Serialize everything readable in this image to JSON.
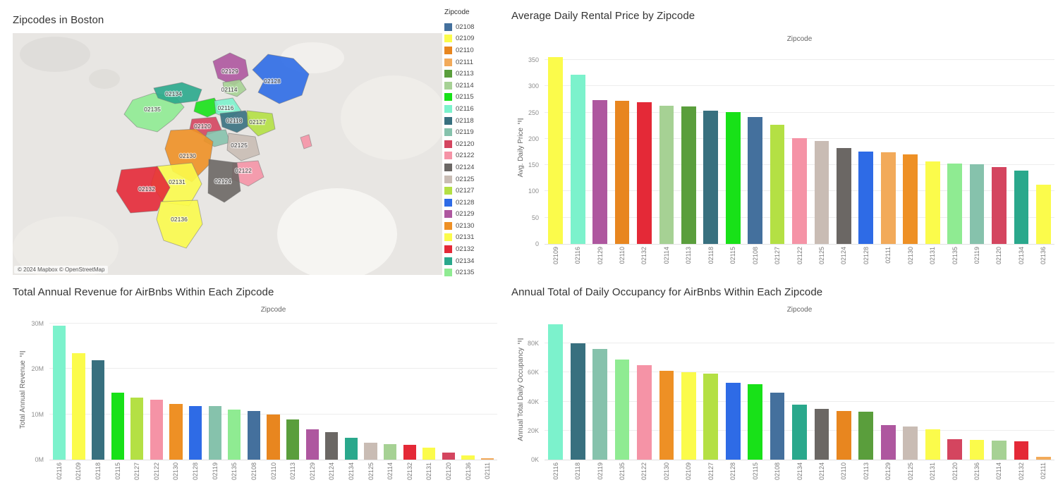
{
  "zipcode_colors": {
    "02108": "#44709d",
    "02109": "#fbfb4b",
    "02110": "#e8861f",
    "02111": "#f2aa5a",
    "02113": "#5a9e3c",
    "02114": "#a6d194",
    "02115": "#18e118",
    "02116": "#7cf2cc",
    "02118": "#38707f",
    "02119": "#86c2ac",
    "02120": "#d4455f",
    "02122": "#f593a6",
    "02124": "#6b6764",
    "02125": "#c9bcb4",
    "02127": "#b4e044",
    "02128": "#2e6be6",
    "02129": "#ae579f",
    "02130": "#ee9025",
    "02131": "#fbfb4b",
    "02132": "#e42937",
    "02134": "#2aa88c",
    "02135": "#8feb92",
    "02136": "#fbfb4b"
  },
  "map_panel": {
    "title": "Zipcodes in Boston",
    "attribution": "© 2024 Mapbox © OpenStreetMap",
    "legend": {
      "title": "Zipcode",
      "items": [
        "02108",
        "02109",
        "02110",
        "02111",
        "02113",
        "02114",
        "02115",
        "02116",
        "02118",
        "02119",
        "02120",
        "02122",
        "02124",
        "02125",
        "02127",
        "02128",
        "02129",
        "02130",
        "02131",
        "02132",
        "02134",
        "02135"
      ]
    },
    "region_labels": [
      "02129",
      "02128",
      "02134",
      "02114",
      "02116",
      "02135",
      "02118",
      "02127",
      "02120",
      "02125",
      "02130",
      "02122",
      "02131",
      "02124",
      "02132",
      "02136"
    ]
  },
  "chart_data": [
    {
      "type": "bar",
      "title": "Average Daily Rental Price by Zipcode",
      "column_header": "Zipcode",
      "ylabel": "Avg. Daily Price",
      "yticks": [
        {
          "v": 0,
          "label": "0"
        },
        {
          "v": 50,
          "label": "50"
        },
        {
          "v": 100,
          "label": "100"
        },
        {
          "v": 150,
          "label": "150"
        },
        {
          "v": 200,
          "label": "200"
        },
        {
          "v": 250,
          "label": "250"
        },
        {
          "v": 300,
          "label": "300"
        },
        {
          "v": 350,
          "label": "350"
        }
      ],
      "scale_max": 365,
      "categories": [
        "02109",
        "02116",
        "02129",
        "02110",
        "02132",
        "02114",
        "02113",
        "02118",
        "02115",
        "02108",
        "02127",
        "02122",
        "02125",
        "02124",
        "02128",
        "02111",
        "02130",
        "02131",
        "02135",
        "02119",
        "02120",
        "02134",
        "02136"
      ],
      "values": [
        355,
        322,
        274,
        272,
        270,
        263,
        262,
        254,
        251,
        242,
        227,
        201,
        196,
        183,
        176,
        174,
        171,
        157,
        153,
        152,
        146,
        139,
        113
      ]
    },
    {
      "type": "bar",
      "title": "Total Annual Revenue for AirBnbs Within Each Zipcode",
      "column_header": "Zipcode",
      "ylabel": "Total Annual Revenue",
      "unit": "M",
      "yticks": [
        {
          "v": 0,
          "label": "0M"
        },
        {
          "v": 10,
          "label": "10M"
        },
        {
          "v": 20,
          "label": "20M"
        },
        {
          "v": 30,
          "label": "30M"
        }
      ],
      "scale_max": 30.8,
      "categories": [
        "02116",
        "02109",
        "02118",
        "02115",
        "02127",
        "02122",
        "02130",
        "02128",
        "02119",
        "02135",
        "02108",
        "02110",
        "02113",
        "02129",
        "02124",
        "02134",
        "02125",
        "02114",
        "02132",
        "02131",
        "02120",
        "02136",
        "02111"
      ],
      "values": [
        29.6,
        23.5,
        22.0,
        14.8,
        13.7,
        13.2,
        12.3,
        11.9,
        11.9,
        11.0,
        10.8,
        10.0,
        8.8,
        6.7,
        6.0,
        4.8,
        3.8,
        3.4,
        3.2,
        2.7,
        1.6,
        1.0,
        0.3
      ]
    },
    {
      "type": "bar",
      "title": "Annual Total of Daily Occupancy for AirBnbs Within Each Zipcode",
      "column_header": "Zipcode",
      "ylabel": "Annual Total Daily Occupancy",
      "unit": "K",
      "yticks": [
        {
          "v": 0,
          "label": "0K"
        },
        {
          "v": 20,
          "label": "20K"
        },
        {
          "v": 40,
          "label": "40K"
        },
        {
          "v": 60,
          "label": "60K"
        },
        {
          "v": 80,
          "label": "80K"
        }
      ],
      "scale_max": 96,
      "categories": [
        "02116",
        "02118",
        "02119",
        "02135",
        "02122",
        "02130",
        "02109",
        "02127",
        "02128",
        "02115",
        "02108",
        "02134",
        "02124",
        "02110",
        "02113",
        "02129",
        "02125",
        "02131",
        "02120",
        "02136",
        "02114",
        "02132",
        "02111"
      ],
      "values": [
        93,
        80,
        76,
        69,
        65,
        61,
        60,
        59,
        53,
        52,
        46,
        38,
        35,
        33.5,
        33,
        24,
        23,
        21,
        14,
        13.5,
        13,
        12.5,
        2
      ]
    }
  ]
}
